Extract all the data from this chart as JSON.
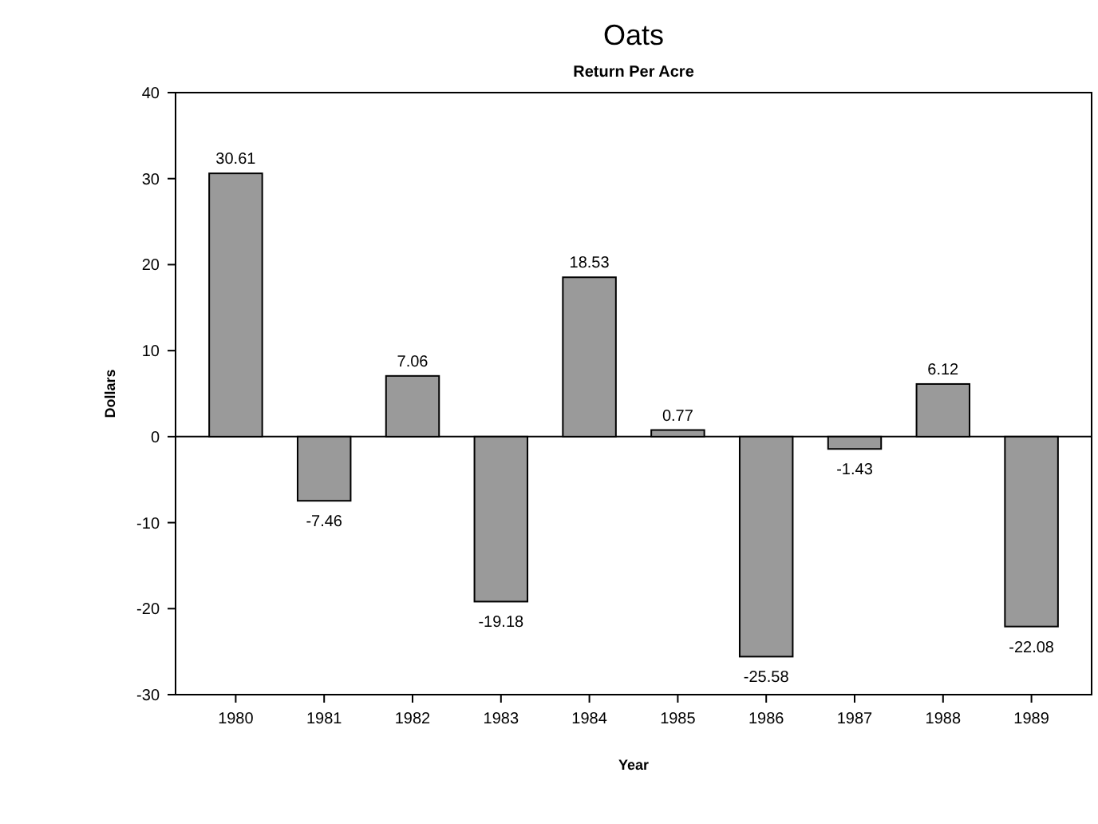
{
  "chart_data": {
    "type": "bar",
    "title": "Oats",
    "subtitle": "Return Per Acre",
    "xlabel": "Year",
    "ylabel": "Dollars",
    "categories": [
      "1980",
      "1981",
      "1982",
      "1983",
      "1984",
      "1985",
      "1986",
      "1987",
      "1988",
      "1989"
    ],
    "values": [
      30.61,
      -7.46,
      7.06,
      -19.18,
      18.53,
      0.77,
      -25.58,
      -1.43,
      6.12,
      -22.08
    ],
    "color": "#9a9a9a",
    "ylim": [
      -30,
      40
    ],
    "yticks": [
      -30,
      -20,
      -10,
      0,
      10,
      20,
      30,
      40
    ],
    "data_labels": true,
    "grid": false,
    "ref_lines": [
      {
        "axis": "y",
        "value": 0,
        "color": "#000000"
      }
    ]
  }
}
